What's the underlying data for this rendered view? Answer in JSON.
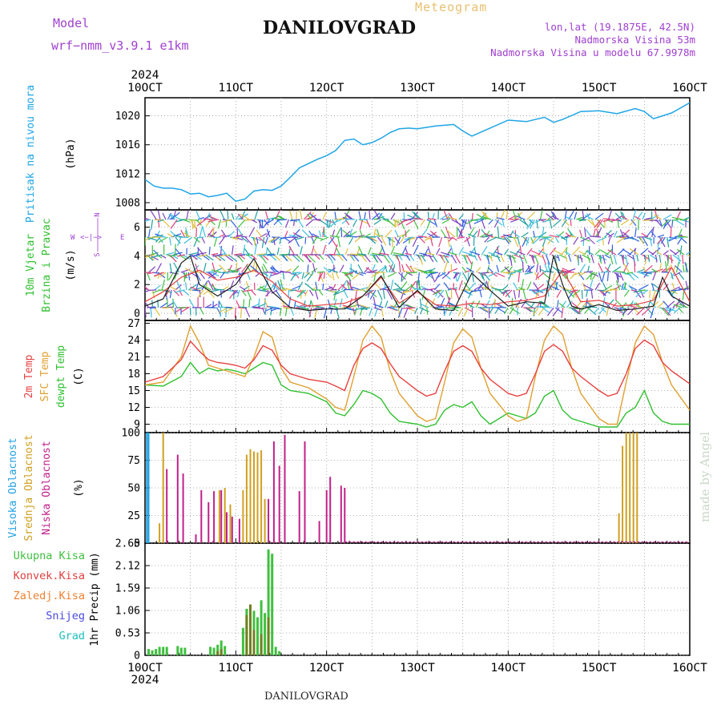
{
  "header": {
    "model_label": "Model",
    "model_name": "wrf−nmm_v3.9.1  e1km",
    "product": "Meteogram",
    "station": "DANILOVGRAD",
    "lonlat": "lon,lat (19.1875E, 42.5N)",
    "elevation": "Nadmorska Visina 53m",
    "model_elevation": "Nadmorska Visina u modelu 67.9978m",
    "watermark": "made by Angel",
    "footer_station": "DANILOVGRAD"
  },
  "colors": {
    "pressure": "#1ea5e6",
    "wind_axis": "#a040d0",
    "temp2m": "#e84040",
    "sfc": "#e0a030",
    "dewpt": "#30c030",
    "cloud_high": "#20a0e0",
    "cloud_mid": "#d0a020",
    "cloud_low": "#c0208a",
    "precip_total": "#40c040",
    "precip_conv": "#e04040",
    "precip_frozen": "#f08030",
    "snow": "#4a4ae0",
    "hail": "#20c0c0",
    "wind_speed": "#202020"
  },
  "chart_data": [
    {
      "type": "line",
      "name": "pressure",
      "ylabel_lines": [
        "Pritisak na nivou mora",
        "(hPa)"
      ],
      "ylim": [
        1007,
        1022.5
      ],
      "yticks": [
        1008,
        1012,
        1016,
        1020
      ],
      "x_top_year": "2024",
      "x_bottom_year": "2024",
      "x_ticks": [
        "10OCT",
        "11OCT",
        "12OCT",
        "13OCT",
        "14OCT",
        "15OCT",
        "16OCT"
      ],
      "x_days": [
        10,
        16
      ],
      "series": [
        {
          "x": [
            10.0,
            10.1,
            10.2,
            10.3,
            10.4,
            10.5,
            10.6,
            10.7,
            10.8,
            10.9,
            11.0,
            11.1,
            11.2,
            11.3,
            11.4,
            11.5,
            11.6,
            11.7,
            11.8,
            11.9,
            12.0,
            12.1,
            12.2,
            12.3,
            12.4,
            12.5,
            12.6,
            12.7,
            12.8,
            12.9,
            13.0,
            13.2,
            13.4,
            13.5,
            13.6,
            13.8,
            14.0,
            14.2,
            14.4,
            14.5,
            14.6,
            14.8,
            15.0,
            15.2,
            15.4,
            15.5,
            15.6,
            15.8,
            16.0
          ],
          "y": [
            1011.2,
            1010.3,
            1010.0,
            1010.0,
            1009.8,
            1009.2,
            1009.3,
            1008.8,
            1009.0,
            1009.3,
            1008.2,
            1008.5,
            1009.6,
            1009.8,
            1009.7,
            1010.3,
            1011.5,
            1012.8,
            1013.4,
            1014.0,
            1014.5,
            1015.2,
            1016.6,
            1016.8,
            1016.0,
            1016.3,
            1016.9,
            1017.7,
            1018.2,
            1018.3,
            1018.2,
            1018.6,
            1018.8,
            1017.9,
            1017.2,
            1018.3,
            1019.4,
            1019.2,
            1019.8,
            1019.1,
            1019.5,
            1020.6,
            1020.7,
            1020.3,
            1021.0,
            1020.6,
            1019.6,
            1020.4,
            1021.8
          ]
        }
      ]
    },
    {
      "type": "line",
      "name": "wind",
      "ylabel_lines": [
        "10m Vjetar",
        "Brzina i Pravac",
        "(m/s)"
      ],
      "compass": [
        "W",
        "<−|−>",
        "E",
        "N",
        "S"
      ],
      "ylim": [
        -0.5,
        7.2
      ],
      "yticks": [
        0,
        2,
        4,
        6
      ],
      "series": [
        {
          "name": "speed",
          "x": [
            10.0,
            10.2,
            10.4,
            10.5,
            10.6,
            10.8,
            11.0,
            11.2,
            11.4,
            11.6,
            11.8,
            12.0,
            12.2,
            12.4,
            12.6,
            12.7,
            12.8,
            13.0,
            13.2,
            13.4,
            13.6,
            13.8,
            14.0,
            14.2,
            14.4,
            14.5,
            14.6,
            14.7,
            14.8,
            15.0,
            15.2,
            15.4,
            15.6,
            15.7,
            15.8,
            16.0
          ],
          "y": [
            0.5,
            1.0,
            3.5,
            4.0,
            2.0,
            1.2,
            2.0,
            3.8,
            1.5,
            0.4,
            0.2,
            0.3,
            0.3,
            1.2,
            2.6,
            1.5,
            0.4,
            1.6,
            0.3,
            0.2,
            2.8,
            1.6,
            0.5,
            0.8,
            0.7,
            4.0,
            2.0,
            0.5,
            0.3,
            0.6,
            0.2,
            0.3,
            0.5,
            2.5,
            1.2,
            0.5
          ]
        },
        {
          "name": "gust",
          "x": [
            10.0,
            10.2,
            10.4,
            10.6,
            10.8,
            11.0,
            11.2,
            11.4,
            11.6,
            11.8,
            12.0,
            12.2,
            12.4,
            12.6,
            12.8,
            13.0,
            13.2,
            13.4,
            13.6,
            13.8,
            14.0,
            14.2,
            14.4,
            14.6,
            14.8,
            15.0,
            15.2,
            15.4,
            15.6,
            15.8,
            16.0
          ],
          "y": [
            0.8,
            1.5,
            2.5,
            3.0,
            2.3,
            2.5,
            3.0,
            2.2,
            1.0,
            0.5,
            0.6,
            0.7,
            1.2,
            2.5,
            0.7,
            1.5,
            0.6,
            0.5,
            0.7,
            0.6,
            0.8,
            0.9,
            1.2,
            3.0,
            0.8,
            0.9,
            0.5,
            0.6,
            0.9,
            3.2,
            0.8
          ]
        }
      ]
    },
    {
      "type": "line",
      "name": "temperature",
      "ylabel_lines": [
        "2m Temp",
        "SFC Temp",
        "dewpt Temp",
        "(C)"
      ],
      "ylim": [
        7.5,
        27.5
      ],
      "yticks": [
        9,
        12,
        15,
        18,
        21,
        24,
        27
      ],
      "series": [
        {
          "name": "2m Temp",
          "x": [
            10.0,
            10.2,
            10.4,
            10.5,
            10.6,
            10.7,
            10.8,
            10.9,
            11.0,
            11.1,
            11.2,
            11.3,
            11.4,
            11.5,
            11.6,
            11.8,
            12.0,
            12.1,
            12.2,
            12.3,
            12.4,
            12.5,
            12.6,
            12.7,
            12.8,
            13.0,
            13.1,
            13.2,
            13.3,
            13.4,
            13.5,
            13.6,
            13.7,
            13.8,
            14.0,
            14.1,
            14.2,
            14.3,
            14.4,
            14.5,
            14.6,
            14.7,
            14.8,
            15.0,
            15.1,
            15.2,
            15.3,
            15.4,
            15.5,
            15.6,
            15.7,
            15.8,
            16.0
          ],
          "y": [
            16.5,
            17.5,
            20.5,
            23.8,
            22.0,
            20.5,
            20.0,
            19.8,
            19.5,
            19.0,
            20.5,
            23.0,
            22.2,
            19.5,
            18.0,
            17.0,
            16.5,
            15.8,
            15.0,
            19.5,
            22.5,
            23.5,
            22.5,
            19.8,
            17.5,
            15.0,
            14.0,
            14.5,
            18.5,
            22.0,
            23.0,
            22.0,
            19.0,
            17.0,
            14.5,
            14.0,
            14.5,
            18.0,
            22.0,
            23.2,
            22.0,
            19.0,
            17.5,
            15.0,
            14.0,
            14.5,
            18.0,
            22.5,
            24.0,
            23.0,
            20.0,
            18.5,
            16.2
          ]
        },
        {
          "name": "SFC Temp",
          "x": [
            10.0,
            10.2,
            10.4,
            10.5,
            10.6,
            10.7,
            10.8,
            10.9,
            11.0,
            11.1,
            11.2,
            11.3,
            11.4,
            11.5,
            11.6,
            11.8,
            12.0,
            12.1,
            12.2,
            12.3,
            12.4,
            12.5,
            12.6,
            12.7,
            12.8,
            13.0,
            13.1,
            13.2,
            13.3,
            13.4,
            13.5,
            13.6,
            13.7,
            13.8,
            14.0,
            14.1,
            14.2,
            14.3,
            14.4,
            14.5,
            14.6,
            14.7,
            14.8,
            15.0,
            15.1,
            15.2,
            15.3,
            15.4,
            15.5,
            15.6,
            15.7,
            15.8,
            16.0
          ],
          "y": [
            16.0,
            16.5,
            21.0,
            26.5,
            23.5,
            19.5,
            19.0,
            18.5,
            18.0,
            17.5,
            21.0,
            25.5,
            24.5,
            19.0,
            16.5,
            15.5,
            13.5,
            12.0,
            11.5,
            17.5,
            24.0,
            26.5,
            24.5,
            18.5,
            14.5,
            10.5,
            9.5,
            10.0,
            16.5,
            23.5,
            26.0,
            24.5,
            19.0,
            14.5,
            10.5,
            9.5,
            10.0,
            17.5,
            24.0,
            26.5,
            25.0,
            19.0,
            14.5,
            10.0,
            9.0,
            9.0,
            16.5,
            23.5,
            26.5,
            25.0,
            20.0,
            16.0,
            11.5
          ]
        },
        {
          "name": "dewpt Temp",
          "x": [
            10.0,
            10.2,
            10.4,
            10.5,
            10.6,
            10.7,
            10.8,
            10.9,
            11.0,
            11.1,
            11.2,
            11.3,
            11.4,
            11.5,
            11.6,
            11.8,
            12.0,
            12.1,
            12.2,
            12.3,
            12.4,
            12.5,
            12.6,
            12.7,
            12.8,
            13.0,
            13.1,
            13.2,
            13.3,
            13.4,
            13.5,
            13.6,
            13.7,
            13.8,
            14.0,
            14.1,
            14.2,
            14.3,
            14.4,
            14.5,
            14.6,
            14.7,
            14.8,
            15.0,
            15.1,
            15.2,
            15.3,
            15.4,
            15.5,
            15.6,
            15.7,
            15.8,
            16.0
          ],
          "y": [
            16.0,
            15.8,
            17.5,
            20.0,
            18.0,
            19.0,
            18.5,
            18.8,
            18.5,
            18.0,
            19.0,
            20.0,
            19.5,
            16.0,
            15.0,
            14.5,
            13.0,
            11.0,
            10.5,
            12.5,
            15.0,
            14.5,
            13.5,
            11.0,
            9.5,
            9.0,
            8.5,
            9.0,
            11.5,
            12.5,
            12.0,
            13.0,
            10.5,
            9.0,
            11.0,
            10.5,
            10.0,
            11.0,
            14.0,
            15.0,
            11.5,
            10.0,
            9.5,
            8.5,
            8.5,
            8.5,
            11.0,
            12.0,
            15.0,
            11.0,
            9.5,
            9.0,
            9.0
          ]
        }
      ]
    },
    {
      "type": "bar",
      "name": "clouds",
      "ylabel_lines": [
        "Visoka Oblacnost",
        "Srednja Oblacnost",
        "Niska Oblacnost",
        "(%)"
      ],
      "ylim": [
        0,
        100
      ],
      "yticks": [
        0,
        25,
        50,
        75,
        100
      ],
      "series": [
        {
          "name": "Visoka Oblacnost",
          "x": [
            10.02,
            10.04
          ],
          "y": [
            100,
            100
          ]
        },
        {
          "name": "Srednja Oblacnost",
          "x": [
            10.16,
            10.2,
            10.82,
            10.88,
            10.94,
            11.08,
            11.12,
            11.16,
            11.2,
            11.24,
            11.28,
            11.32,
            15.22,
            15.26,
            15.3,
            15.34,
            15.38,
            15.42
          ],
          "y": [
            18,
            100,
            48,
            50,
            35,
            48,
            80,
            85,
            83,
            82,
            84,
            40,
            27,
            88,
            100,
            100,
            100,
            100
          ]
        },
        {
          "name": "Niska Oblacnost",
          "x": [
            10.24,
            10.36,
            10.42,
            10.56,
            10.62,
            10.7,
            10.76,
            10.84,
            10.9,
            10.96,
            11.04,
            11.36,
            11.42,
            11.48,
            11.54,
            11.7,
            11.76,
            11.92,
            12.0,
            12.04,
            12.16,
            12.2
          ],
          "y": [
            67,
            80,
            63,
            8,
            48,
            37,
            47,
            48,
            28,
            24,
            22,
            40,
            92,
            70,
            98,
            47,
            92,
            20,
            48,
            60,
            52,
            50
          ]
        }
      ]
    },
    {
      "type": "bar",
      "name": "precip",
      "ylabel_lines": [
        "Ukupna Kisa",
        "Konvek.Kisa",
        "Zaledj.Kisa",
        "Snijeg",
        "Grad",
        "1hr Precip (mm)"
      ],
      "ylim": [
        0,
        2.65
      ],
      "yticks": [
        0,
        0.53,
        1.06,
        1.59,
        2.12,
        2.65
      ],
      "series": [
        {
          "name": "Ukupna Kisa",
          "x": [
            10.04,
            10.08,
            10.12,
            10.16,
            10.2,
            10.24,
            10.36,
            10.4,
            10.44,
            10.72,
            10.76,
            10.8,
            10.84,
            10.88,
            11.08,
            11.12,
            11.16,
            11.2,
            11.24,
            11.28,
            11.32,
            11.36,
            11.4,
            11.44,
            11.48
          ],
          "y": [
            0.15,
            0.12,
            0.15,
            0.2,
            0.2,
            0.2,
            0.22,
            0.18,
            0.18,
            0.2,
            0.18,
            0.25,
            0.35,
            0.22,
            0.65,
            1.1,
            1.2,
            1.05,
            0.9,
            1.3,
            1.0,
            2.5,
            2.4,
            0.2,
            0.1
          ]
        },
        {
          "name": "Konvek.Kisa",
          "x": [
            10.8,
            10.84,
            11.12,
            11.16,
            11.2,
            11.28,
            11.36
          ],
          "y": [
            0.1,
            0.15,
            0.95,
            1.2,
            0.6,
            0.5,
            0.9
          ]
        }
      ]
    }
  ]
}
